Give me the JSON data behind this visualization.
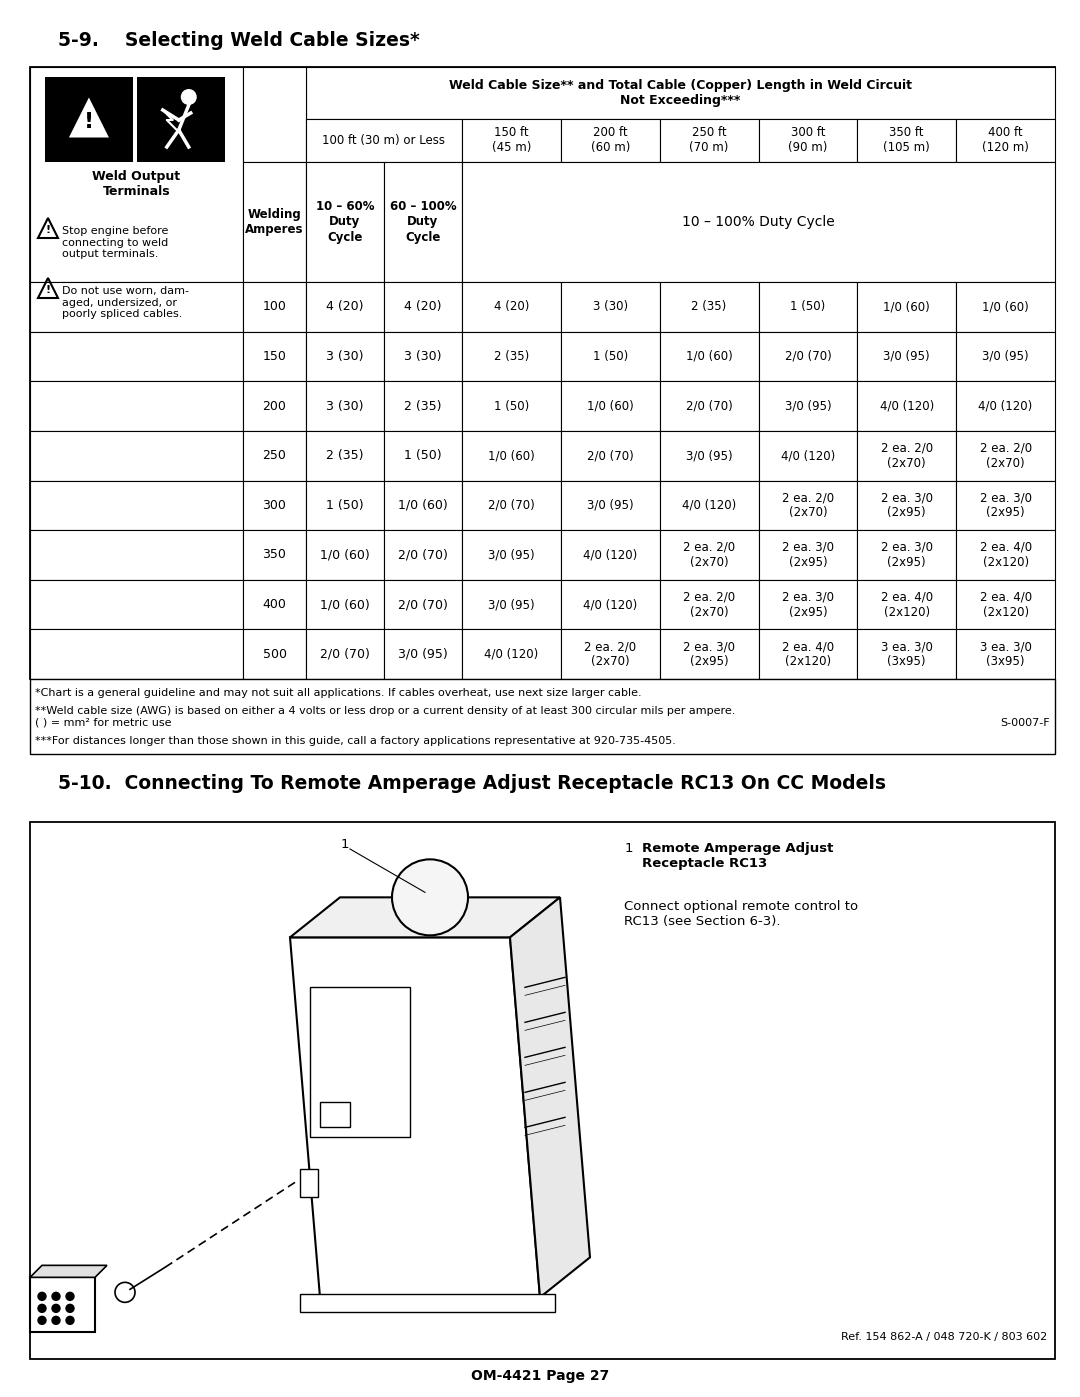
{
  "title1": "5-9.    Selecting Weld Cable Sizes*",
  "title2": "5-10.  Connecting To Remote Amperage Adjust Receptacle RC13 On CC Models",
  "table_header1": "Weld Cable Size** and Total Cable (Copper) Length in Weld Circuit\nNot Exceeding***",
  "col_headers": [
    "100 ft (30 m) or Less",
    "150 ft\n(45 m)",
    "200 ft\n(60 m)",
    "250 ft\n(70 m)",
    "300 ft\n(90 m)",
    "350 ft\n(105 m)",
    "400 ft\n(120 m)"
  ],
  "sub_headers": [
    "10 – 60%\nDuty\nCycle",
    "60 – 100%\nDuty\nCycle"
  ],
  "duty_cycle_label": "10 – 100% Duty Cycle",
  "welding_amperes_label": "Welding\nAmperes",
  "amperes": [
    100,
    150,
    200,
    250,
    300,
    350,
    400,
    500
  ],
  "table_data": [
    [
      "4 (20)",
      "4 (20)",
      "4 (20)",
      "3 (30)",
      "2 (35)",
      "1 (50)",
      "1/0 (60)",
      "1/0 (60)"
    ],
    [
      "3 (30)",
      "3 (30)",
      "2 (35)",
      "1 (50)",
      "1/0 (60)",
      "2/0 (70)",
      "3/0 (95)",
      "3/0 (95)"
    ],
    [
      "3 (30)",
      "2 (35)",
      "1 (50)",
      "1/0 (60)",
      "2/0 (70)",
      "3/0 (95)",
      "4/0 (120)",
      "4/0 (120)"
    ],
    [
      "2 (35)",
      "1 (50)",
      "1/0 (60)",
      "2/0 (70)",
      "3/0 (95)",
      "4/0 (120)",
      "2 ea. 2/0\n(2x70)",
      "2 ea. 2/0\n(2x70)"
    ],
    [
      "1 (50)",
      "1/0 (60)",
      "2/0 (70)",
      "3/0 (95)",
      "4/0 (120)",
      "2 ea. 2/0\n(2x70)",
      "2 ea. 3/0\n(2x95)",
      "2 ea. 3/0\n(2x95)"
    ],
    [
      "1/0 (60)",
      "2/0 (70)",
      "3/0 (95)",
      "4/0 (120)",
      "2 ea. 2/0\n(2x70)",
      "2 ea. 3/0\n(2x95)",
      "2 ea. 3/0\n(2x95)",
      "2 ea. 4/0\n(2x120)"
    ],
    [
      "1/0 (60)",
      "2/0 (70)",
      "3/0 (95)",
      "4/0 (120)",
      "2 ea. 2/0\n(2x70)",
      "2 ea. 3/0\n(2x95)",
      "2 ea. 4/0\n(2x120)",
      "2 ea. 4/0\n(2x120)"
    ],
    [
      "2/0 (70)",
      "3/0 (95)",
      "4/0 (120)",
      "2 ea. 2/0\n(2x70)",
      "2 ea. 3/0\n(2x95)",
      "2 ea. 4/0\n(2x120)",
      "3 ea. 3/0\n(3x95)",
      "3 ea. 3/0\n(3x95)"
    ]
  ],
  "footnote1": "*Chart is a general guideline and may not suit all applications. If cables overheat, use next size larger cable.",
  "footnote2": "**Weld cable size (AWG) is based on either a 4 volts or less drop or a current density of at least 300 circular mils per ampere.\n( ) = mm² for metric use",
  "footnote3": "***For distances longer than those shown in this guide, call a factory applications representative at 920-735-4505.",
  "ref_code": "S-0007-F",
  "legend_num": "1",
  "legend_title": "Remote Amperage Adjust\nReceptacle RC13",
  "legend_text": "Connect optional remote control to\nRC13 (see Section 6-3).",
  "ref_bottom": "Ref. 154 862-A / 048 720-K / 803 602",
  "page_num": "OM-4421 Page 27",
  "weld_output_label": "Weld Output\nTerminals",
  "warning1": "Stop engine before\nconnecting to weld\noutput terminals.",
  "warning2": "Do not use worn, dam-\naged, undersized, or\npoorly spliced cables.",
  "bg_color": "#ffffff"
}
